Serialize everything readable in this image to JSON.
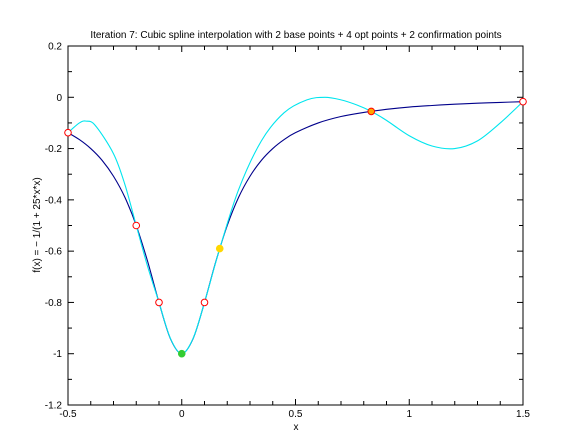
{
  "chart_data": {
    "type": "line",
    "title": "Iteration 7: Cubic spline interpolation with 2 base points + 4 opt points + 2 confirmation points",
    "xlabel": "x",
    "ylabel": "f(x) = − 1/(1 + 25*x*x)",
    "xlim": [
      -0.5,
      1.5
    ],
    "ylim": [
      -1.2,
      0.2
    ],
    "x_ticks": [
      -0.5,
      0,
      0.5,
      1,
      1.5
    ],
    "x_tick_labels": [
      "-0.5",
      "0",
      "0.5",
      "1",
      "1.5"
    ],
    "x_minor_ticks": [
      -0.4,
      -0.3,
      -0.2,
      -0.1,
      0.1,
      0.2,
      0.3,
      0.4,
      0.6,
      0.7,
      0.8,
      0.9,
      1.1,
      1.2,
      1.3,
      1.4
    ],
    "y_ticks": [
      -1.2,
      -1,
      -0.8,
      -0.6,
      -0.4,
      -0.2,
      0,
      0.2
    ],
    "y_tick_labels": [
      "-1.2",
      "-1",
      "-0.8",
      "-0.6",
      "-0.4",
      "-0.2",
      "0",
      "0.2"
    ],
    "y_minor_ticks": [
      -1.1,
      -0.9,
      -0.7,
      -0.5,
      -0.3,
      -0.1,
      0.1
    ],
    "grid": false,
    "series": [
      {
        "style": "true-function",
        "color": "#00008b",
        "x": [
          -0.5,
          -0.45,
          -0.4,
          -0.35,
          -0.3,
          -0.25,
          -0.2,
          -0.15,
          -0.1,
          -0.05,
          0,
          0.05,
          0.1,
          0.15,
          0.2,
          0.25,
          0.3,
          0.35,
          0.4,
          0.45,
          0.5,
          0.6,
          0.7,
          0.8,
          0.9,
          1.0,
          1.1,
          1.2,
          1.3,
          1.4,
          1.5
        ],
        "y": [
          -0.138,
          -0.165,
          -0.2,
          -0.246,
          -0.308,
          -0.39,
          -0.5,
          -0.64,
          -0.8,
          -0.941,
          -1.0,
          -0.941,
          -0.8,
          -0.64,
          -0.5,
          -0.39,
          -0.308,
          -0.246,
          -0.2,
          -0.165,
          -0.138,
          -0.1,
          -0.075,
          -0.059,
          -0.047,
          -0.038,
          -0.032,
          -0.027,
          -0.023,
          -0.02,
          -0.017
        ]
      },
      {
        "style": "spline-interpolant",
        "color": "#00e5ee",
        "x": [
          -0.5,
          -0.45,
          -0.42,
          -0.38,
          -0.3,
          -0.25,
          -0.2,
          -0.15,
          -0.1,
          -0.05,
          0,
          0.05,
          0.1,
          0.167,
          0.25,
          0.35,
          0.45,
          0.55,
          0.63,
          0.7,
          0.77,
          0.833,
          0.9,
          1.0,
          1.1,
          1.2,
          1.3,
          1.4,
          1.5
        ],
        "y": [
          -0.138,
          -0.1,
          -0.093,
          -0.11,
          -0.22,
          -0.34,
          -0.5,
          -0.66,
          -0.8,
          -0.94,
          -1.0,
          -0.94,
          -0.8,
          -0.59,
          -0.36,
          -0.17,
          -0.06,
          -0.01,
          0.0,
          -0.01,
          -0.03,
          -0.055,
          -0.09,
          -0.15,
          -0.19,
          -0.2,
          -0.17,
          -0.1,
          -0.017
        ]
      }
    ],
    "markers": [
      {
        "group": "base-point",
        "x": -0.5,
        "y": -0.138,
        "face": "#ffffff",
        "edge": "#ff0000"
      },
      {
        "group": "base-point",
        "x": 1.5,
        "y": -0.017,
        "face": "#ffffff",
        "edge": "#ff0000"
      },
      {
        "group": "opt-point",
        "x": -0.2,
        "y": -0.5,
        "face": "#ffffff",
        "edge": "#ff0000"
      },
      {
        "group": "opt-point",
        "x": -0.1,
        "y": -0.8,
        "face": "#ffffff",
        "edge": "#ff0000"
      },
      {
        "group": "opt-point",
        "x": 0.1,
        "y": -0.8,
        "face": "#ffffff",
        "edge": "#ff0000"
      },
      {
        "group": "opt-point",
        "x": 0.833,
        "y": -0.055,
        "face": "#ffa500",
        "edge": "#ff0000"
      },
      {
        "group": "confirmation-point",
        "x": 0.167,
        "y": -0.59,
        "face": "#ffd700",
        "edge": "#ffd700"
      },
      {
        "group": "confirmation-point",
        "x": 0,
        "y": -1.0,
        "face": "#33cc33",
        "edge": "#33cc33"
      }
    ]
  }
}
